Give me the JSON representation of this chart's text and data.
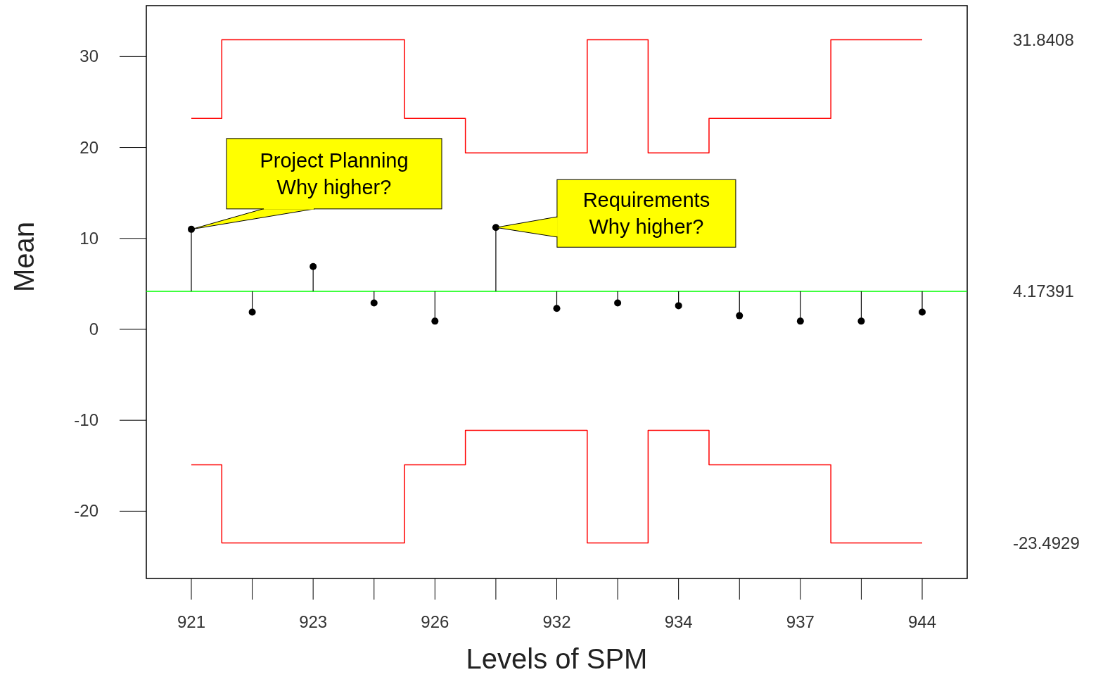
{
  "chart_data": {
    "type": "scatter",
    "xlabel": "Levels of SPM",
    "ylabel": "Mean",
    "categories": [
      "921",
      null,
      "923",
      null,
      "926",
      null,
      "932",
      null,
      "934",
      null,
      "937",
      null,
      "944"
    ],
    "series": [
      {
        "color": "#000000",
        "values": [
          11.0,
          1.9,
          6.9,
          2.9,
          0.9,
          11.2,
          2.3,
          2.9,
          2.6,
          1.5,
          0.9,
          0.9,
          1.9
        ],
        "errors": [
          [
            4.17391,
            11.0
          ],
          [
            1.9,
            4.17391
          ],
          [
            4.17391,
            6.9
          ],
          [
            2.9,
            4.17391
          ],
          [
            0.9,
            4.17391
          ],
          [
            4.17391,
            11.2
          ],
          [
            2.3,
            4.17391
          ],
          [
            2.9,
            4.17391
          ],
          [
            2.6,
            4.17391
          ],
          [
            1.5,
            4.17391
          ],
          [
            0.9,
            4.17391
          ],
          [
            0.9,
            4.17391
          ],
          [
            1.9,
            4.17391
          ]
        ]
      },
      {
        "type": "step",
        "marker": "none",
        "color": "#ff0000",
        "values": [
          23.2,
          31.8408,
          31.8408,
          31.8408,
          23.2,
          19.4,
          19.4,
          31.8408,
          19.4,
          23.2,
          23.2,
          31.8408,
          31.8408
        ]
      },
      {
        "type": "step",
        "marker": "none",
        "color": "#ff0000",
        "values": [
          -14.9,
          -23.4929,
          -23.4929,
          -23.4929,
          -14.9,
          -11.1,
          -11.1,
          -23.4929,
          -11.1,
          -14.9,
          -14.9,
          -23.4929,
          -23.4929
        ]
      }
    ],
    "ylim": [
      -27.4,
      35.6
    ],
    "yticks": [
      -20,
      -10,
      0,
      10,
      20,
      30
    ],
    "y2lim": [
      -27.4,
      35.6
    ],
    "y2ticks": [
      31.8408,
      4.17391,
      -23.4929
    ],
    "ref_lines": [
      {
        "axis": "y",
        "value": 4.17391,
        "color": "#00ff00"
      }
    ],
    "annotations": [
      {
        "text": "Project Planning\nWhy higher?",
        "x": "921",
        "y": 11.0
      },
      "Requirements\nWhy higher?"
    ],
    "marker": "circle",
    "grid": false
  }
}
